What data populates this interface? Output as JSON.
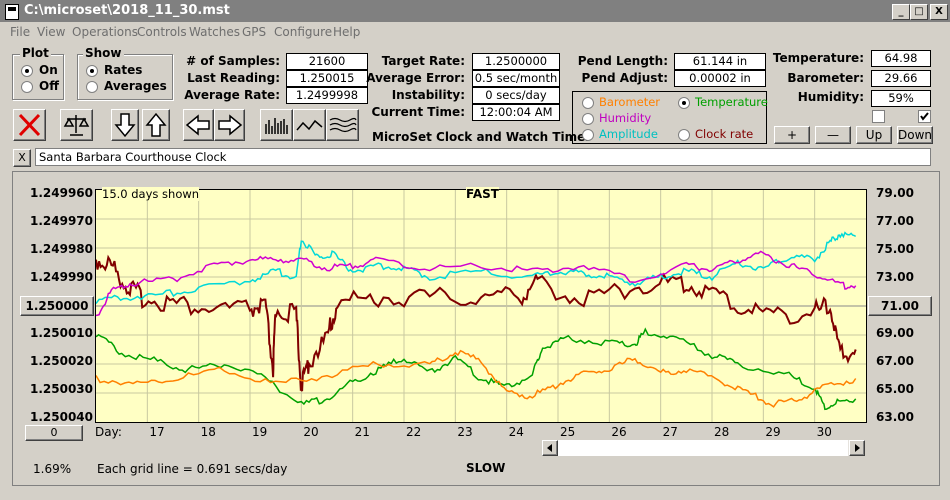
{
  "window": {
    "title": "C:\\microset\\2018_11_30.mst",
    "min": "_",
    "max": "□",
    "close": "X"
  },
  "menu": [
    "File",
    "View",
    "Operations",
    "Controls",
    "Watches",
    "GPS",
    "Configure",
    "Help"
  ],
  "plot_group": {
    "title": "Plot",
    "on": "On",
    "off": "Off",
    "selected": "On"
  },
  "show_group": {
    "title": "Show",
    "rates": "Rates",
    "averages": "Averages",
    "selected": "Rates"
  },
  "stats": [
    {
      "label": "# of Samples:",
      "value": "21600"
    },
    {
      "label": "Last Reading:",
      "value": "1.250015"
    },
    {
      "label": "Average Rate:",
      "value": "1.2499998"
    }
  ],
  "rates": [
    {
      "label": "Target Rate:",
      "value": "1.2500000"
    },
    {
      "label": "Average Error:",
      "value": "0.5 sec/month"
    },
    {
      "label": "Instability:",
      "value": "0 secs/day"
    },
    {
      "label": "Current Time:",
      "value": "12:00:04 AM"
    }
  ],
  "app_caption": "MicroSet Clock and Watch Timer",
  "pend": [
    {
      "label": "Pend Length:",
      "value": "61.144 in"
    },
    {
      "label": "Pend Adjust:",
      "value": "0.00002 in"
    }
  ],
  "sensors": [
    {
      "label": "Temperature:",
      "value": "64.98"
    },
    {
      "label": "Barometer:",
      "value": "29.66"
    },
    {
      "label": "Humidity:",
      "value": "59%"
    }
  ],
  "overlay_options": [
    {
      "label": "Barometer",
      "color": "#ff8000",
      "selected": false
    },
    {
      "label": "Temperature",
      "color": "#00a000",
      "selected": true
    },
    {
      "label": "Humidity",
      "color": "#c000c0",
      "selected": false
    },
    {
      "label": "Clock rate",
      "color": "#800000",
      "selected": false
    },
    {
      "label": "Amplitude",
      "color": "#00c0c0",
      "selected": false
    }
  ],
  "buttons": {
    "plus": "+",
    "minus": "—",
    "up": "Up",
    "down": "Down",
    "clear_x": "X",
    "zero": "0",
    "center_left": "1.250000",
    "center_right": "71.00"
  },
  "clock_name": "Santa Barbara Courthouse Clock",
  "plot": {
    "days_shown": "15.0 days shown",
    "fast_label": "FAST",
    "slow_label": "SLOW",
    "grid_note": "Each grid line = 0.691 secs/day",
    "day_prefix": "Day:",
    "pct": "1.69%"
  },
  "chart_data": {
    "type": "line",
    "title": "",
    "x_label": "Day:",
    "x_ticks": [
      "17",
      "18",
      "19",
      "20",
      "21",
      "22",
      "23",
      "24",
      "25",
      "26",
      "27",
      "28",
      "29",
      "30"
    ],
    "x_range": [
      16.0,
      31.0
    ],
    "y_left_ticks": [
      "1.249960",
      "1.249970",
      "1.249980",
      "1.249990",
      "1.250000",
      "1.250010",
      "1.250020",
      "1.250030",
      "1.250040"
    ],
    "y_left_range": [
      1.24996,
      1.25004
    ],
    "y_right_ticks": [
      "79.00",
      "77.00",
      "75.00",
      "73.00",
      "71.00",
      "69.00",
      "67.00",
      "65.00",
      "63.00"
    ],
    "y_right_range": [
      63.0,
      79.0
    ],
    "grid": true,
    "series": [
      {
        "color": "#800000",
        "axis": "left",
        "points": [
          [
            16.0,
            1.249984
          ],
          [
            16.3,
            1.249986
          ],
          [
            16.6,
            1.249993
          ],
          [
            16.9,
            1.249997
          ],
          [
            17.5,
            1.249999
          ],
          [
            18.2,
            1.250001
          ],
          [
            19.0,
            1.250001
          ],
          [
            19.3,
            1.25
          ],
          [
            19.45,
            1.250022
          ],
          [
            19.5,
            1.250001
          ],
          [
            19.9,
            1.250003
          ],
          [
            20.0,
            1.250028
          ],
          [
            20.15,
            1.250019
          ],
          [
            20.5,
            1.250011
          ],
          [
            20.7,
            1.249999
          ],
          [
            21.5,
            1.249997
          ],
          [
            22.5,
            1.249997
          ],
          [
            23.5,
            1.249997
          ],
          [
            24.3,
            1.249996
          ],
          [
            24.6,
            1.249992
          ],
          [
            25.5,
            1.249998
          ],
          [
            26.5,
            1.249993
          ],
          [
            27.3,
            1.249992
          ],
          [
            27.8,
            1.249994
          ],
          [
            28.5,
            1.25
          ],
          [
            29.2,
            1.250003
          ],
          [
            30.0,
            1.250002
          ],
          [
            30.3,
            1.25
          ],
          [
            30.5,
            1.250017
          ],
          [
            30.8,
            1.250015
          ]
        ]
      },
      {
        "color": "#00a000",
        "axis": "left",
        "points": [
          [
            16.0,
            1.25001
          ],
          [
            16.5,
            1.250016
          ],
          [
            17.2,
            1.250019
          ],
          [
            17.8,
            1.250022
          ],
          [
            18.5,
            1.25002
          ],
          [
            19.3,
            1.250025
          ],
          [
            20.0,
            1.250034
          ],
          [
            20.5,
            1.250032
          ],
          [
            21.0,
            1.250026
          ],
          [
            21.5,
            1.250022
          ],
          [
            22.0,
            1.250018
          ],
          [
            22.5,
            1.250023
          ],
          [
            23.0,
            1.250018
          ],
          [
            23.5,
            1.250025
          ],
          [
            24.0,
            1.250028
          ],
          [
            24.5,
            1.250024
          ],
          [
            24.7,
            1.250014
          ],
          [
            25.2,
            1.250011
          ],
          [
            26.0,
            1.250013
          ],
          [
            26.5,
            1.250013
          ],
          [
            26.7,
            1.250009
          ],
          [
            27.3,
            1.250011
          ],
          [
            28.0,
            1.250017
          ],
          [
            28.5,
            1.25002
          ],
          [
            29.5,
            1.250024
          ],
          [
            30.0,
            1.250028
          ],
          [
            30.2,
            1.250035
          ],
          [
            30.5,
            1.250033
          ],
          [
            30.8,
            1.250032
          ]
        ]
      },
      {
        "color": "#ff8000",
        "axis": "left",
        "points": [
          [
            16.0,
            1.250025
          ],
          [
            16.8,
            1.250027
          ],
          [
            17.5,
            1.250025
          ],
          [
            18.5,
            1.250022
          ],
          [
            19.5,
            1.250027
          ],
          [
            20.5,
            1.250024
          ],
          [
            21.5,
            1.25002
          ],
          [
            22.5,
            1.25002
          ],
          [
            23.0,
            1.250016
          ],
          [
            23.5,
            1.250019
          ],
          [
            24.0,
            1.25003
          ],
          [
            24.5,
            1.250031
          ],
          [
            25.0,
            1.250027
          ],
          [
            25.5,
            1.250023
          ],
          [
            26.0,
            1.250022
          ],
          [
            26.5,
            1.250018
          ],
          [
            27.0,
            1.250023
          ],
          [
            27.5,
            1.250022
          ],
          [
            28.2,
            1.250026
          ],
          [
            28.7,
            1.25003
          ],
          [
            29.2,
            1.250034
          ],
          [
            29.7,
            1.250032
          ],
          [
            30.2,
            1.250028
          ],
          [
            30.8,
            1.250025
          ]
        ]
      },
      {
        "color": "#00d8d8",
        "axis": "left",
        "points": [
          [
            16.0,
            1.249998
          ],
          [
            16.6,
            1.249997
          ],
          [
            17.3,
            1.249996
          ],
          [
            18.0,
            1.249994
          ],
          [
            19.0,
            1.249991
          ],
          [
            19.5,
            1.249988
          ],
          [
            19.9,
            1.24999
          ],
          [
            20.0,
            1.249977
          ],
          [
            20.3,
            1.249983
          ],
          [
            20.6,
            1.249982
          ],
          [
            21.0,
            1.249988
          ],
          [
            21.5,
            1.249986
          ],
          [
            22.0,
            1.249987
          ],
          [
            22.5,
            1.24999
          ],
          [
            23.5,
            1.249988
          ],
          [
            24.5,
            1.24999
          ],
          [
            25.0,
            1.249988
          ],
          [
            25.5,
            1.249989
          ],
          [
            26.0,
            1.24999
          ],
          [
            26.5,
            1.249992
          ],
          [
            27.0,
            1.24999
          ],
          [
            27.5,
            1.249988
          ],
          [
            28.0,
            1.24999
          ],
          [
            28.5,
            1.249985
          ],
          [
            29.0,
            1.249987
          ],
          [
            29.5,
            1.249983
          ],
          [
            30.0,
            1.249984
          ],
          [
            30.3,
            1.249978
          ],
          [
            30.5,
            1.249975
          ],
          [
            30.8,
            1.249976
          ]
        ]
      },
      {
        "color": "#d000d0",
        "axis": "left",
        "points": [
          [
            16.0,
            1.250004
          ],
          [
            16.3,
            1.249995
          ],
          [
            16.7,
            1.249992
          ],
          [
            17.5,
            1.249991
          ],
          [
            18.3,
            1.249986
          ],
          [
            19.0,
            1.249984
          ],
          [
            19.5,
            1.249984
          ],
          [
            20.0,
            1.249984
          ],
          [
            20.5,
            1.249987
          ],
          [
            21.0,
            1.249986
          ],
          [
            21.5,
            1.249984
          ],
          [
            22.5,
            1.249987
          ],
          [
            23.5,
            1.249986
          ],
          [
            24.5,
            1.249988
          ],
          [
            25.5,
            1.249986
          ],
          [
            26.5,
            1.249991
          ],
          [
            27.5,
            1.249986
          ],
          [
            28.0,
            1.249987
          ],
          [
            28.5,
            1.249984
          ],
          [
            29.0,
            1.249982
          ],
          [
            29.5,
            1.249986
          ],
          [
            30.0,
            1.249989
          ],
          [
            30.5,
            1.249993
          ],
          [
            30.8,
            1.249993
          ]
        ]
      }
    ]
  }
}
